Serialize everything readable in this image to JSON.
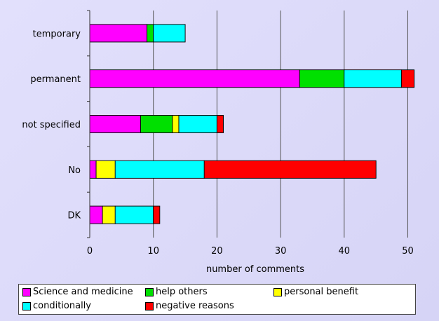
{
  "chart_data": {
    "type": "bar",
    "orientation": "horizontal",
    "stacked": true,
    "title": "",
    "xlabel": "number of comments",
    "ylabel": "",
    "xlim": [
      0,
      52
    ],
    "xticks": [
      0,
      10,
      20,
      30,
      40,
      50
    ],
    "grid": true,
    "legend_position": "bottom",
    "categories": [
      "temporary",
      "permanent",
      "not specified",
      "No",
      "DK"
    ],
    "series": [
      {
        "name": "Science and medicine",
        "color": "#ff00ff",
        "values": [
          9,
          33,
          8,
          1,
          2
        ]
      },
      {
        "name": "help others",
        "color": "#00e000",
        "values": [
          1,
          7,
          5,
          0,
          0
        ]
      },
      {
        "name": "personal benefit",
        "color": "#ffff00",
        "values": [
          0,
          0,
          1,
          3,
          2
        ]
      },
      {
        "name": "conditionally",
        "color": "#00ffff",
        "values": [
          5,
          9,
          6,
          14,
          6
        ]
      },
      {
        "name": "negative reasons",
        "color": "#ff0000",
        "values": [
          0,
          2,
          1,
          27,
          1
        ]
      }
    ]
  }
}
